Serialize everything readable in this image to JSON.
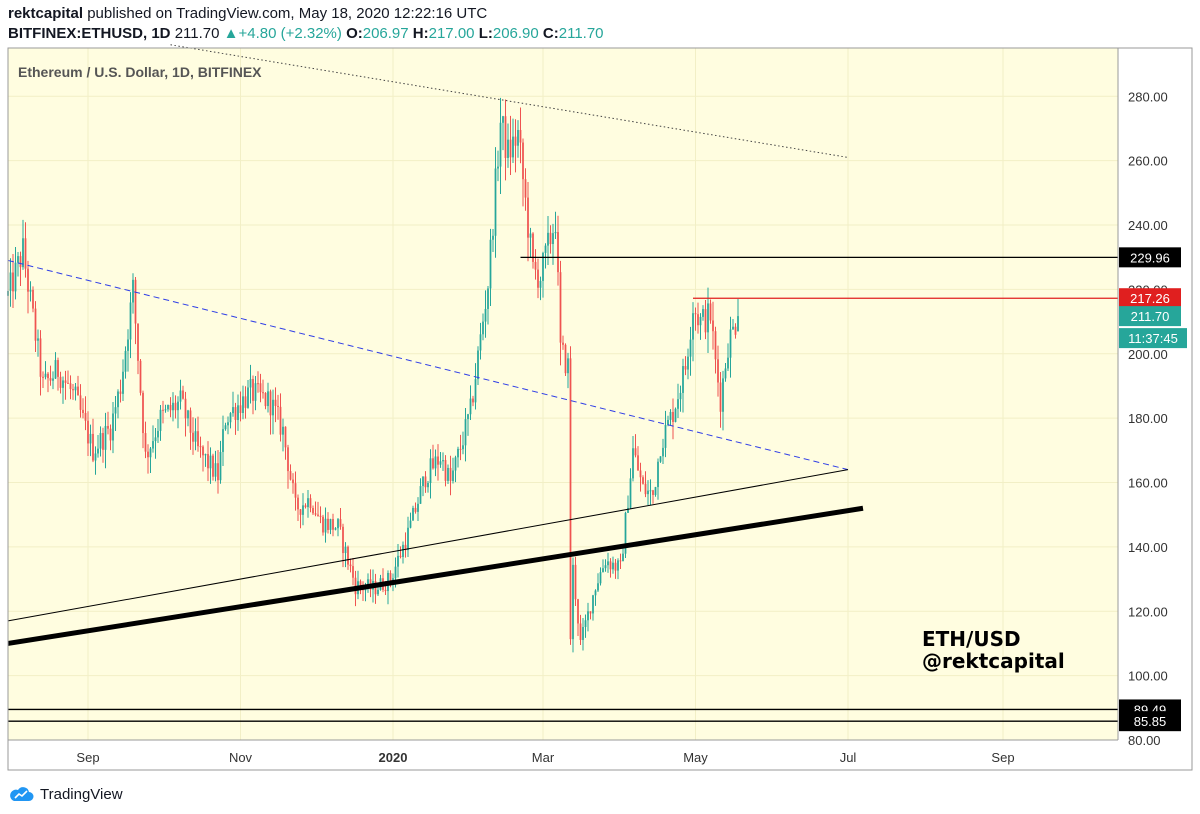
{
  "header": {
    "author": "rektcapital",
    "published_text": "published on TradingView.com, May 18, 2020 12:22:16 UTC",
    "symbol": "BITFINEX:ETHUSD, 1D",
    "last": "211.70",
    "change": "+4.80 (+2.32%)",
    "open_label": "O:",
    "open": "206.97",
    "high_label": "H:",
    "high": "217.00",
    "low_label": "L:",
    "low": "206.90",
    "close_label": "C:",
    "close": "211.70"
  },
  "chart_data": {
    "type": "candlestick",
    "title": "Ethereum / U.S. Dollar, 1D, BITFINEX",
    "watermark": [
      "ETH/USD",
      "@rektcapital"
    ],
    "x_range": [
      "2019-07-31",
      "2020-10-17"
    ],
    "ylim": [
      80,
      295
    ],
    "y_ticks": [
      80,
      100,
      120,
      140,
      160,
      180,
      200,
      220,
      240,
      260,
      280
    ],
    "y_tick_labels": [
      "80.00",
      "100.00",
      "120.00",
      "140.00",
      "160.00",
      "180.00",
      "200.00",
      "220.00",
      "240.00",
      "260.00",
      "280.00"
    ],
    "x_ticks": [
      {
        "date": "2019-09-01",
        "label": "Sep",
        "bold": false
      },
      {
        "date": "2019-11-01",
        "label": "Nov",
        "bold": false
      },
      {
        "date": "2020-01-01",
        "label": "2020",
        "bold": true
      },
      {
        "date": "2020-03-01",
        "label": "Mar",
        "bold": false
      },
      {
        "date": "2020-05-01",
        "label": "May",
        "bold": false
      },
      {
        "date": "2020-07-01",
        "label": "Jul",
        "bold": false
      },
      {
        "date": "2020-09-01",
        "label": "Sep",
        "bold": false
      }
    ],
    "up_color": "#26a69a",
    "down_color": "#ef5350",
    "background": "#fffde0",
    "price_anchors": [
      [
        "2019-07-31",
        218
      ],
      [
        "2019-08-06",
        232
      ],
      [
        "2019-08-10",
        211
      ],
      [
        "2019-08-14",
        190
      ],
      [
        "2019-08-20",
        195
      ],
      [
        "2019-08-27",
        186
      ],
      [
        "2019-09-03",
        170
      ],
      [
        "2019-09-10",
        177
      ],
      [
        "2019-09-14",
        190
      ],
      [
        "2019-09-19",
        220
      ],
      [
        "2019-09-24",
        168
      ],
      [
        "2019-09-30",
        180
      ],
      [
        "2019-10-08",
        185
      ],
      [
        "2019-10-15",
        170
      ],
      [
        "2019-10-23",
        162
      ],
      [
        "2019-10-26",
        180
      ],
      [
        "2019-11-05",
        188
      ],
      [
        "2019-11-13",
        185
      ],
      [
        "2019-11-18",
        176
      ],
      [
        "2019-11-23",
        152
      ],
      [
        "2019-11-29",
        155
      ],
      [
        "2019-12-03",
        148
      ],
      [
        "2019-12-10",
        146
      ],
      [
        "2019-12-17",
        128
      ],
      [
        "2019-12-24",
        127
      ],
      [
        "2019-12-31",
        130
      ],
      [
        "2020-01-07",
        144
      ],
      [
        "2020-01-14",
        162
      ],
      [
        "2020-01-20",
        168
      ],
      [
        "2020-01-24",
        160
      ],
      [
        "2020-02-01",
        182
      ],
      [
        "2020-02-08",
        222
      ],
      [
        "2020-02-13",
        272
      ],
      [
        "2020-02-16",
        262
      ],
      [
        "2020-02-20",
        268
      ],
      [
        "2020-02-26",
        226
      ],
      [
        "2020-02-29",
        224
      ],
      [
        "2020-03-06",
        242
      ],
      [
        "2020-03-08",
        201
      ],
      [
        "2020-03-11",
        196
      ],
      [
        "2020-03-12",
        112
      ],
      [
        "2020-03-13",
        133
      ],
      [
        "2020-03-16",
        110
      ],
      [
        "2020-03-22",
        128
      ],
      [
        "2020-03-26",
        136
      ],
      [
        "2020-04-01",
        133
      ],
      [
        "2020-04-06",
        170
      ],
      [
        "2020-04-10",
        158
      ],
      [
        "2020-04-14",
        156
      ],
      [
        "2020-04-17",
        172
      ],
      [
        "2020-04-22",
        182
      ],
      [
        "2020-04-27",
        196
      ],
      [
        "2020-04-30",
        215
      ],
      [
        "2020-05-03",
        210
      ],
      [
        "2020-05-07",
        212
      ],
      [
        "2020-05-09",
        197
      ],
      [
        "2020-05-11",
        186
      ],
      [
        "2020-05-14",
        203
      ],
      [
        "2020-05-18",
        211.7
      ]
    ],
    "trendlines": [
      {
        "name": "upper-dotted-resistance",
        "style": "dotted",
        "color": "#444444",
        "width": 1,
        "from": [
          "2019-10-04",
          296
        ],
        "to": [
          "2020-07-01",
          261
        ]
      },
      {
        "name": "blue-dashed-descending",
        "style": "dashed",
        "color": "#2f3ee6",
        "width": 1,
        "from": [
          "2019-07-31",
          229
        ],
        "to": [
          "2020-07-01",
          164
        ]
      },
      {
        "name": "thin-ascending-support",
        "style": "solid",
        "color": "#000000",
        "width": 1,
        "from": [
          "2019-07-31",
          117
        ],
        "to": [
          "2020-07-01",
          164
        ]
      },
      {
        "name": "thick-ascending-support",
        "style": "solid",
        "color": "#000000",
        "width": 5,
        "from": [
          "2019-07-31",
          110
        ],
        "to": [
          "2020-07-07",
          152
        ]
      }
    ],
    "horizontal_levels": [
      {
        "name": "resistance-229",
        "value": 229.96,
        "label": "229.96",
        "color": "#000000",
        "from": "2020-02-21",
        "badge": "#000000"
      },
      {
        "name": "resistance-217",
        "value": 217.26,
        "label": "217.26",
        "color": "#e01f1f",
        "from": "2020-04-30",
        "badge": "#e01f1f"
      },
      {
        "name": "support-89",
        "value": 89.49,
        "label": "89.49",
        "color": "#000000",
        "from": "2019-07-31",
        "badge": "#000000"
      },
      {
        "name": "support-85",
        "value": 85.85,
        "label": "85.85",
        "color": "#000000",
        "from": "2019-07-31",
        "badge": "#000000"
      }
    ],
    "last_price_badge": {
      "label": "211.70",
      "value": 211.7,
      "color": "#26a69a"
    },
    "countdown_badge": {
      "label": "11:37:45",
      "color": "#26a69a"
    }
  },
  "brand": {
    "name": "TradingView"
  }
}
